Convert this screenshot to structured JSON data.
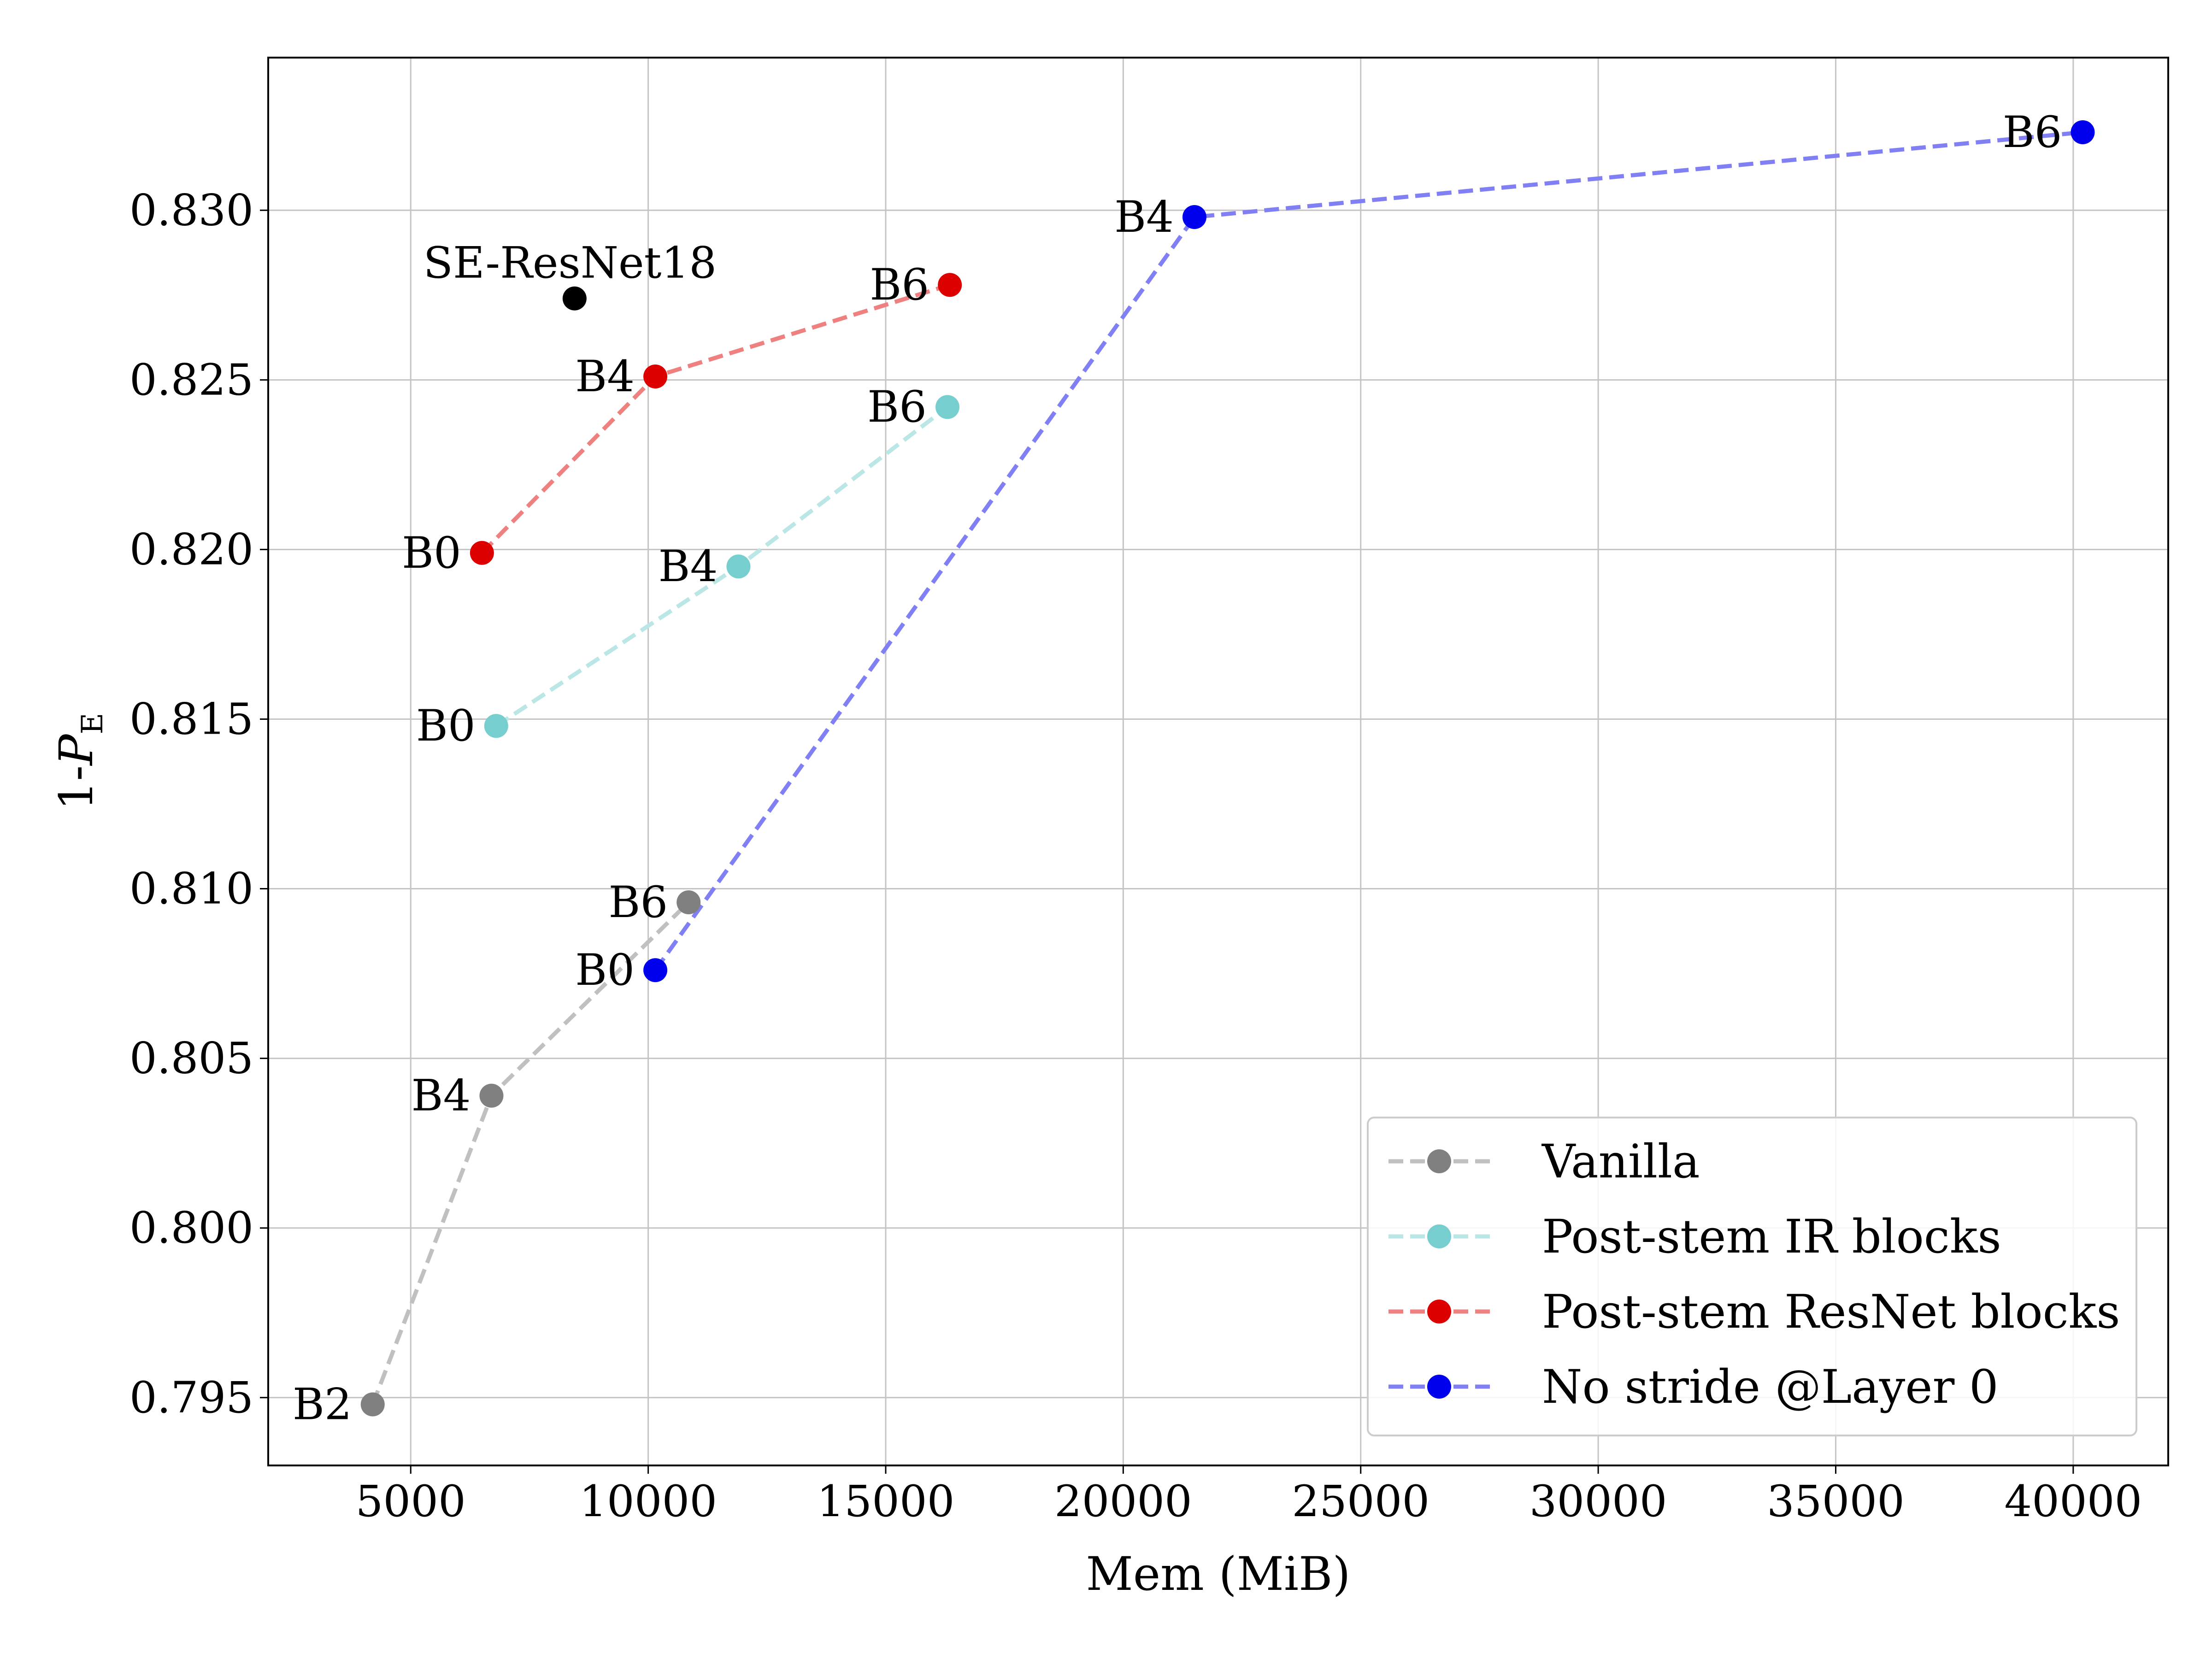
{
  "chart_data": {
    "type": "scatter",
    "xlabel": "Mem (MiB)",
    "ylabel": {
      "prefix": "1-",
      "var": "P",
      "sub": "E"
    },
    "xlim": [
      2000,
      42000
    ],
    "ylim": [
      0.793,
      0.8345
    ],
    "xticks": [
      5000,
      10000,
      15000,
      20000,
      25000,
      30000,
      35000,
      40000
    ],
    "yticks": [
      0.795,
      0.8,
      0.805,
      0.81,
      0.815,
      0.82,
      0.825,
      0.83
    ],
    "xtick_labels": [
      "5000",
      "10000",
      "15000",
      "20000",
      "25000",
      "30000",
      "35000",
      "40000"
    ],
    "ytick_labels": [
      "0.795",
      "0.800",
      "0.805",
      "0.810",
      "0.815",
      "0.820",
      "0.825",
      "0.830"
    ],
    "grid": true,
    "legend_position": "lower-right",
    "series": [
      {
        "name": "Vanilla",
        "color": "#808080",
        "line_color": "#c0c0c0",
        "points": [
          {
            "label": "B2",
            "x": 4200,
            "y": 0.7948
          },
          {
            "label": "B4",
            "x": 6700,
            "y": 0.8039
          },
          {
            "label": "B6",
            "x": 10850,
            "y": 0.8096
          }
        ]
      },
      {
        "name": "Post-stem IR blocks",
        "color": "#76cece",
        "line_color": "#bbe6e6",
        "points": [
          {
            "label": "B0",
            "x": 6800,
            "y": 0.8148
          },
          {
            "label": "B4",
            "x": 11900,
            "y": 0.8195
          },
          {
            "label": "B6",
            "x": 16300,
            "y": 0.8242
          }
        ]
      },
      {
        "name": "Post-stem ResNet blocks",
        "color": "#dd0000",
        "line_color": "#ee8080",
        "points": [
          {
            "label": "B0",
            "x": 6500,
            "y": 0.8199
          },
          {
            "label": "B4",
            "x": 10150,
            "y": 0.8251
          },
          {
            "label": "B6",
            "x": 16350,
            "y": 0.8278
          }
        ]
      },
      {
        "name": "No stride @Layer 0",
        "color": "#0000ee",
        "line_color": "#8080f4",
        "points": [
          {
            "label": "B0",
            "x": 10150,
            "y": 0.8076
          },
          {
            "label": "B4",
            "x": 21500,
            "y": 0.8298
          },
          {
            "label": "B6",
            "x": 40200,
            "y": 0.8323
          }
        ]
      }
    ],
    "annotations": [
      {
        "label": "SE-ResNet18",
        "x": 8450,
        "y": 0.8274,
        "color": "#000000"
      }
    ]
  }
}
